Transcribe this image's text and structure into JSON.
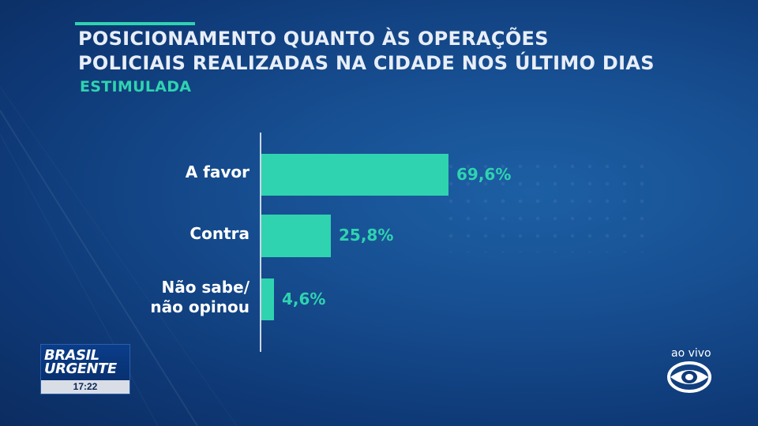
{
  "header": {
    "title_line1": "POSICIONAMENTO QUANTO ÀS OPERAÇÕES",
    "title_line2": "POLICIAIS REALIZADAS NA CIDADE NOS ÚLTIMO DIAS",
    "subtitle": "ESTIMULADA"
  },
  "chart_data": {
    "type": "bar",
    "orientation": "horizontal",
    "title": "POSICIONAMENTO QUANTO ÀS OPERAÇÕES POLICIAIS REALIZADAS NA CIDADE NOS ÚLTIMO DIAS",
    "subtitle": "ESTIMULADA",
    "categories": [
      "A favor",
      "Contra",
      "Não sabe/ não opinou"
    ],
    "category_lines": [
      [
        "A favor"
      ],
      [
        "Contra"
      ],
      [
        "Não sabe/",
        "não opinou"
      ]
    ],
    "values": [
      69.6,
      25.8,
      4.6
    ],
    "value_labels": [
      "69,6%",
      "25,8%",
      "4,6%"
    ],
    "xlim": [
      0,
      100
    ],
    "unit": "%",
    "grid": false,
    "bar_color": "#2fd3b0"
  },
  "broadcast": {
    "program_line1": "BRASIL",
    "program_line2": "URGENTE",
    "clock": "17:22",
    "live_label": "ao vivo",
    "channel_logo_icon": "band-logo-icon"
  },
  "colors": {
    "accent": "#2fd3b0",
    "background": "#174f92",
    "text": "#ffffff"
  }
}
